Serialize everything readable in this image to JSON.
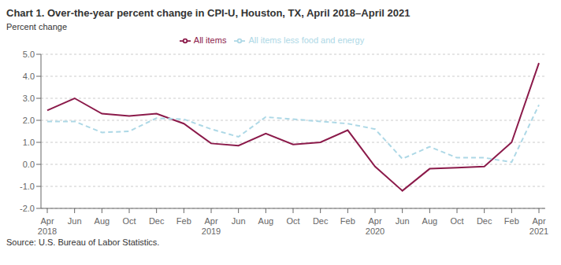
{
  "chart_data": {
    "type": "line",
    "title": "Chart 1. Over-the-year percent change in CPI-U, Houston,  TX, April 2018–April 2021",
    "ylabel": "Percent change",
    "source": "Source: U.S. Bureau of Labor Statistics.",
    "categories": [
      "Apr\n2018",
      "Jun",
      "Aug",
      "Oct",
      "Dec",
      "Feb",
      "Apr\n2019",
      "Jun",
      "Aug",
      "Oct",
      "Dec",
      "Feb",
      "Apr\n2020",
      "Jun",
      "Aug",
      "Oct",
      "Dec",
      "Feb",
      "Apr\n2021"
    ],
    "series": [
      {
        "name": "All items",
        "color": "#8B1A4A",
        "line_style": "solid",
        "values": [
          2.45,
          3.0,
          2.3,
          2.2,
          2.3,
          1.85,
          0.95,
          0.85,
          1.4,
          0.9,
          1.0,
          1.55,
          -0.1,
          -1.2,
          -0.2,
          -0.15,
          -0.1,
          1.0,
          4.6
        ]
      },
      {
        "name": "All items less food and energy",
        "color": "#ADD8E6",
        "line_style": "dashed",
        "values": [
          1.95,
          1.95,
          1.45,
          1.5,
          2.1,
          2.05,
          1.6,
          1.25,
          2.15,
          2.05,
          1.95,
          1.85,
          1.6,
          0.25,
          0.8,
          0.3,
          0.3,
          0.1,
          2.7
        ]
      }
    ],
    "ylim": [
      -2.0,
      5.0
    ],
    "yticks": [
      {
        "value": -2.0,
        "label": "-2.0"
      },
      {
        "value": -1.0,
        "label": "-1.0"
      },
      {
        "value": 0.0,
        "label": "0.0"
      },
      {
        "value": 1.0,
        "label": "1.0"
      },
      {
        "value": 2.0,
        "label": "2.0"
      },
      {
        "value": 3.0,
        "label": "3.0"
      },
      {
        "value": 4.0,
        "label": "4.0"
      },
      {
        "value": 5.0,
        "label": "5.0"
      }
    ],
    "grid": true,
    "legend": "top"
  }
}
